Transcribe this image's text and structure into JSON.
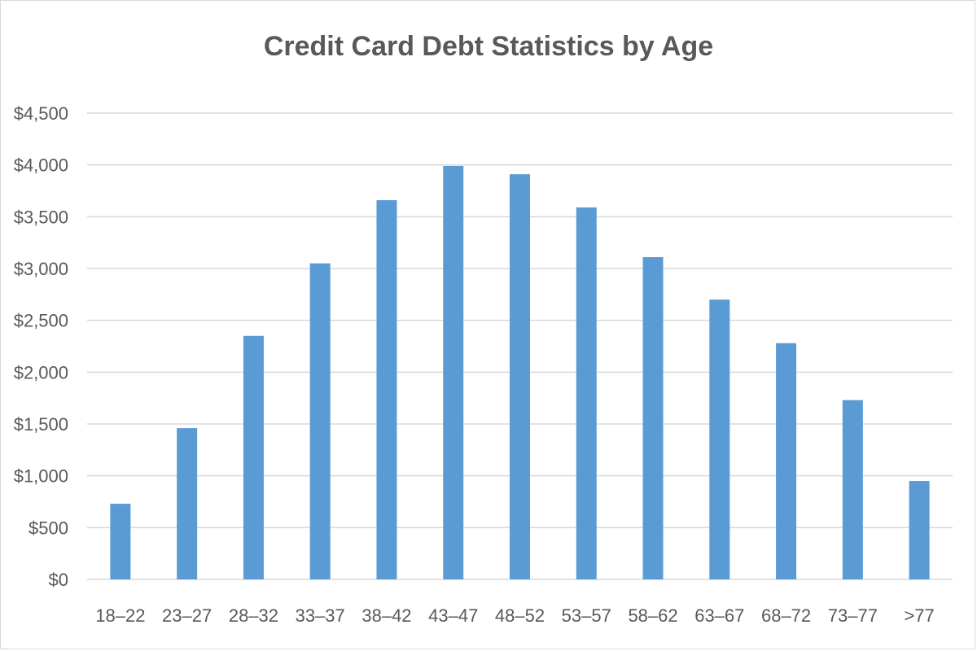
{
  "chart_data": {
    "type": "bar",
    "title": "Credit Card Debt Statistics by Age",
    "xlabel": "",
    "ylabel": "",
    "categories": [
      "18–22",
      "23–27",
      "28–32",
      "33–37",
      "38–42",
      "43–47",
      "48–52",
      "53–57",
      "58–62",
      "63–67",
      "68–72",
      "73–77",
      ">77"
    ],
    "values": [
      730,
      1460,
      2350,
      3050,
      3660,
      3990,
      3910,
      3590,
      3110,
      2700,
      2280,
      1730,
      950
    ],
    "ylim": [
      0,
      4500
    ],
    "yticks": [
      0,
      500,
      1000,
      1500,
      2000,
      2500,
      3000,
      3500,
      4000,
      4500
    ],
    "ytick_labels": [
      "$0",
      "$500",
      "$1,000",
      "$1,500",
      "$2,000",
      "$2,500",
      "$3,000",
      "$3,500",
      "$4,000",
      "$4,500"
    ],
    "grid": true,
    "legend": "none",
    "colors": {
      "bar": "#5b9bd5",
      "grid": "#d9d9d9",
      "text": "#595959"
    }
  }
}
